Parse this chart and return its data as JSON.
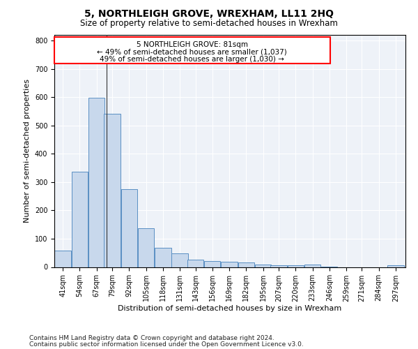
{
  "title": "5, NORTHLEIGH GROVE, WREXHAM, LL11 2HQ",
  "subtitle": "Size of property relative to semi-detached houses in Wrexham",
  "xlabel": "Distribution of semi-detached houses by size in Wrexham",
  "ylabel": "Number of semi-detached properties",
  "footnote1": "Contains HM Land Registry data © Crown copyright and database right 2024.",
  "footnote2": "Contains public sector information licensed under the Open Government Licence v3.0.",
  "annotation_line1": "5 NORTHLEIGH GROVE: 81sqm",
  "annotation_line2": "← 49% of semi-detached houses are smaller (1,037)",
  "annotation_line3": "49% of semi-detached houses are larger (1,030) →",
  "bar_labels": [
    "41sqm",
    "54sqm",
    "67sqm",
    "79sqm",
    "92sqm",
    "105sqm",
    "118sqm",
    "131sqm",
    "143sqm",
    "156sqm",
    "169sqm",
    "182sqm",
    "195sqm",
    "207sqm",
    "220sqm",
    "233sqm",
    "246sqm",
    "259sqm",
    "271sqm",
    "284sqm",
    "297sqm"
  ],
  "bar_values": [
    58,
    336,
    598,
    541,
    276,
    137,
    67,
    48,
    25,
    22,
    19,
    15,
    8,
    7,
    7,
    8,
    1,
    0,
    0,
    0,
    6
  ],
  "bar_left_edges": [
    41,
    54,
    67,
    79,
    92,
    105,
    118,
    131,
    143,
    156,
    169,
    182,
    195,
    207,
    220,
    233,
    246,
    259,
    271,
    284,
    297
  ],
  "bar_widths": [
    13,
    13,
    13,
    13,
    13,
    13,
    13,
    13,
    13,
    13,
    13,
    13,
    13,
    13,
    13,
    13,
    13,
    13,
    13,
    13,
    13
  ],
  "bar_color": "#c8d8ec",
  "bar_edge_color": "#5a8fc3",
  "property_line_x": 81,
  "ylim": [
    0,
    820
  ],
  "yticks": [
    0,
    100,
    200,
    300,
    400,
    500,
    600,
    700,
    800
  ],
  "xlim_min": 41,
  "xlim_max": 311,
  "bg_color": "#eef2f8",
  "grid_color": "#ffffff",
  "title_fontsize": 10,
  "subtitle_fontsize": 8.5,
  "axis_label_fontsize": 8,
  "tick_fontsize": 7,
  "annotation_fontsize": 7.5,
  "footnote_fontsize": 6.5
}
